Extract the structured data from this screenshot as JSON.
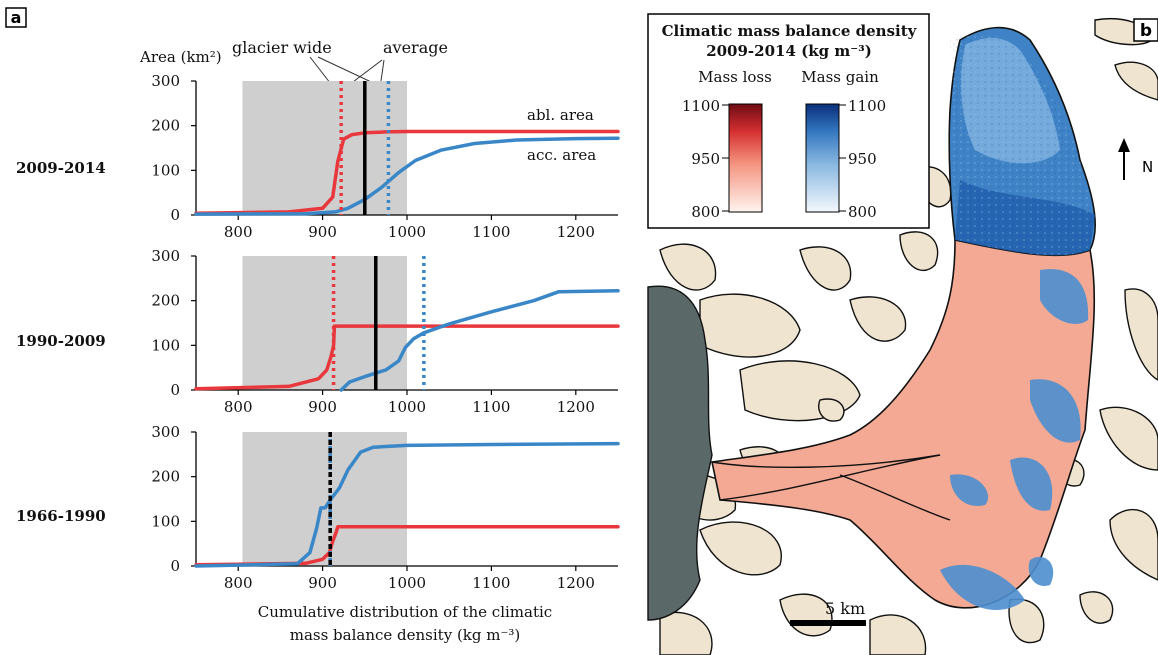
{
  "panel_a": {
    "label": "a",
    "ylabel": "Area (km²)",
    "annotations": {
      "glacier_wide": "glacier wide",
      "average": "average"
    },
    "series_labels": {
      "abl": "abl. area",
      "acc": "acc. area"
    },
    "xlabel_line1": "Cumulative distribution of the climatic",
    "xlabel_line2": "mass balance density (kg m⁻³)"
  },
  "panel_b": {
    "label": "b",
    "legend_title_1": "Climatic mass balance density",
    "legend_title_2": "2009-2014 (kg m⁻³)",
    "loss_label": "Mass loss",
    "gain_label": "Mass gain",
    "colorbar_ticks": [
      "1100",
      "950",
      "800"
    ],
    "north": "N",
    "scale": "5 km"
  },
  "colors": {
    "abl": "#e8383d",
    "acc": "#3a87c8",
    "shade": "#cfcfcf",
    "avg": "#000000"
  },
  "chart_data": [
    {
      "type": "line",
      "period": "2009-2014",
      "xlim": [
        750,
        1250
      ],
      "ylim": [
        0,
        300
      ],
      "xticks": [
        800,
        900,
        1000,
        1100,
        1200
      ],
      "yticks": [
        0,
        100,
        200,
        300
      ],
      "shaded_range": [
        805,
        1000
      ],
      "average_line": 950,
      "abl_glacier_wide": 922,
      "acc_glacier_wide": 978,
      "series": [
        {
          "name": "abl. area",
          "color": "#e8383d",
          "x": [
            750,
            860,
            900,
            912,
            918,
            925,
            935,
            950,
            975,
            1000,
            1100,
            1250
          ],
          "y": [
            4,
            7,
            15,
            40,
            120,
            170,
            180,
            184,
            186,
            187,
            187,
            187
          ]
        },
        {
          "name": "acc. area",
          "color": "#3a87c8",
          "x": [
            750,
            880,
            915,
            930,
            950,
            970,
            990,
            1010,
            1040,
            1080,
            1130,
            1200,
            1250
          ],
          "y": [
            2,
            3,
            7,
            15,
            35,
            62,
            95,
            122,
            145,
            160,
            168,
            171,
            172
          ]
        }
      ]
    },
    {
      "type": "line",
      "period": "1990-2009",
      "xlim": [
        750,
        1250
      ],
      "ylim": [
        0,
        300
      ],
      "xticks": [
        800,
        900,
        1000,
        1100,
        1200
      ],
      "yticks": [
        0,
        100,
        200,
        300
      ],
      "shaded_range": [
        805,
        1000
      ],
      "average_line": 963,
      "abl_glacier_wide": 913,
      "acc_glacier_wide": 1020,
      "series": [
        {
          "name": "abl. area",
          "color": "#e8383d",
          "x": [
            750,
            860,
            895,
            905,
            910,
            913,
            914,
            1250
          ],
          "y": [
            3,
            8,
            25,
            45,
            75,
            100,
            143,
            143
          ]
        },
        {
          "name": "acc. area",
          "color": "#3a87c8",
          "x": [
            922,
            932,
            950,
            975,
            990,
            998,
            1008,
            1020,
            1050,
            1100,
            1150,
            1180,
            1250
          ],
          "y": [
            0,
            18,
            30,
            45,
            65,
            95,
            115,
            128,
            148,
            175,
            200,
            220,
            222
          ]
        }
      ]
    },
    {
      "type": "line",
      "period": "1966-1990",
      "xlim": [
        750,
        1250
      ],
      "ylim": [
        0,
        300
      ],
      "xticks": [
        800,
        900,
        1000,
        1100,
        1200
      ],
      "yticks": [
        0,
        100,
        200,
        300
      ],
      "shaded_range": [
        805,
        1000
      ],
      "average_line": 909,
      "abl_glacier_wide": 909,
      "acc_glacier_wide": 909,
      "series": [
        {
          "name": "abl. area",
          "color": "#e8383d",
          "x": [
            750,
            880,
            900,
            908,
            912,
            916,
            918,
            1250
          ],
          "y": [
            3,
            6,
            15,
            30,
            55,
            75,
            88,
            88
          ]
        },
        {
          "name": "acc. area",
          "color": "#3a87c8",
          "x": [
            750,
            870,
            885,
            893,
            898,
            903,
            910,
            920,
            930,
            945,
            960,
            1000,
            1100,
            1250
          ],
          "y": [
            0,
            5,
            30,
            85,
            130,
            130,
            150,
            175,
            215,
            255,
            266,
            270,
            272,
            274
          ]
        }
      ]
    }
  ]
}
